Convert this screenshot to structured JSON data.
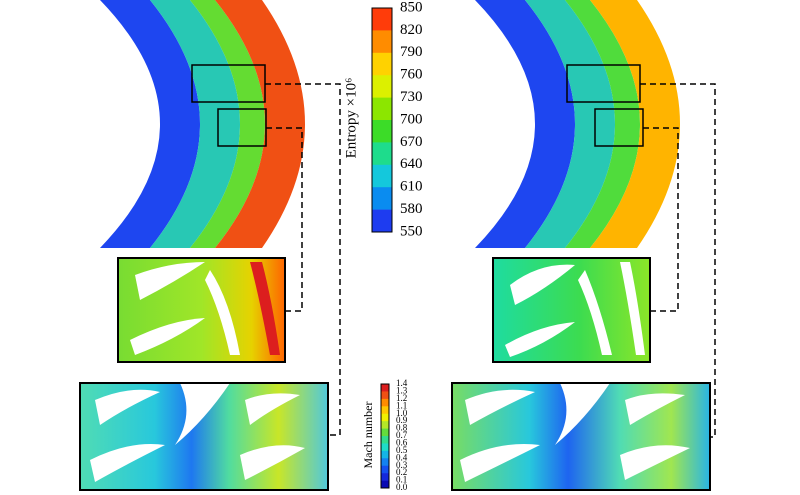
{
  "colorbars": {
    "entropy": {
      "label": "Entropy ×10⁶",
      "ticks": [
        "850",
        "820",
        "790",
        "760",
        "730",
        "700",
        "670",
        "640",
        "610",
        "580",
        "550"
      ]
    },
    "mach": {
      "label": "Mach number",
      "ticks": [
        "1.4",
        "1.3",
        "1.2",
        "1.1",
        "1.0",
        "0.9",
        "0.8",
        "0.7",
        "0.6",
        "0.5",
        "0.4",
        "0.3",
        "0.2",
        "0.1",
        "0.0"
      ]
    }
  }
}
